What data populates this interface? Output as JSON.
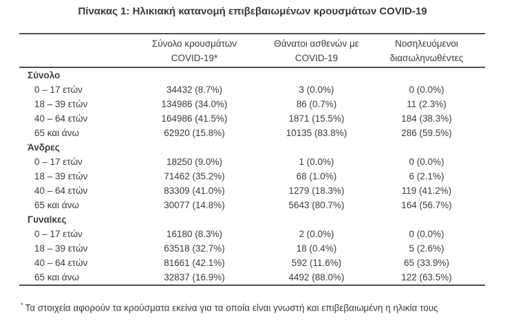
{
  "title": "Πίνακας 1: Ηλικιακή κατανομή επιβεβαιωμένων κρουσμάτων COVID-19",
  "table": {
    "columns": [
      {
        "line1": "Σύνολο κρουσμάτων",
        "line2": "COVID-19*"
      },
      {
        "line1": "Θάνατοι ασθενών με",
        "line2": "COVID-19"
      },
      {
        "line1": "Νοσηλευόμενοι",
        "line2": "διασωληνωθέντες"
      }
    ],
    "sections": [
      {
        "label": "Σύνολο",
        "rows": [
          {
            "age": "0 – 17 ετών",
            "cases": "34432 (8.7%)",
            "deaths": "3 (0.0%)",
            "intubated": "0 (0.0%)"
          },
          {
            "age": "18 – 39 ετών",
            "cases": "134986 (34.0%)",
            "deaths": "86 (0.7%)",
            "intubated": "11 (2.3%)"
          },
          {
            "age": "40 – 64 ετών",
            "cases": "164986 (41.5%)",
            "deaths": "1871 (15.5%)",
            "intubated": "184 (38.3%)"
          },
          {
            "age": "65 και άνω",
            "cases": "62920 (15.8%)",
            "deaths": "10135 (83.8%)",
            "intubated": "286 (59.5%)"
          }
        ]
      },
      {
        "label": "Άνδρες",
        "rows": [
          {
            "age": "0 – 17 ετών",
            "cases": "18250 (9.0%)",
            "deaths": "1 (0.0%)",
            "intubated": "0 (0.0%)"
          },
          {
            "age": "18 – 39 ετών",
            "cases": "71462 (35.2%)",
            "deaths": "68 (1.0%)",
            "intubated": "6 (2.1%)"
          },
          {
            "age": "40 – 64 ετών",
            "cases": "83309 (41.0%)",
            "deaths": "1279 (18.3%)",
            "intubated": "119 (41.2%)"
          },
          {
            "age": "65 και άνω",
            "cases": "30077 (14.8%)",
            "deaths": "5643 (80.7%)",
            "intubated": "164 (56.7%)"
          }
        ]
      },
      {
        "label": "Γυναίκες",
        "rows": [
          {
            "age": "0 – 17 ετών",
            "cases": "16180 (8.3%)",
            "deaths": "2 (0.0%)",
            "intubated": "0 (0.0%)"
          },
          {
            "age": "18 – 39 ετών",
            "cases": "63518 (32.7%)",
            "deaths": "18 (0.4%)",
            "intubated": "5 (2.6%)"
          },
          {
            "age": "40 – 64 ετών",
            "cases": "81661 (42.1%)",
            "deaths": "592 (11.6%)",
            "intubated": "65 (33.9%)"
          },
          {
            "age": "65 και άνω",
            "cases": "32837 (16.9%)",
            "deaths": "4492 (88.0%)",
            "intubated": "122 (63.5%)"
          }
        ]
      }
    ]
  },
  "footnote": {
    "marker": "*",
    "text": "Τα στοιχεία αφορούν τα κρούσματα εκείνα για τα οποία είναι γνωστή και επιβεβαιωμένη η ηλικία τους"
  }
}
